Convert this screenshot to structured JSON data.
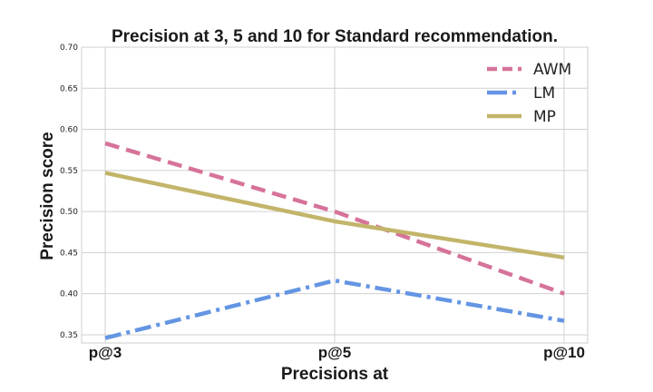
{
  "chart_data": {
    "type": "line",
    "title": "Precision at 3, 5 and 10 for Standard recommendation.",
    "xlabel": "Precisions at",
    "ylabel": "Precision score",
    "categories": [
      "p@3",
      "p@5",
      "p@10"
    ],
    "ylim": [
      0.34,
      0.7
    ],
    "yticks": [
      "0.35",
      "0.40",
      "0.45",
      "0.50",
      "0.55",
      "0.60",
      "0.65",
      "0.70"
    ],
    "grid": true,
    "legend_position": "top-right",
    "series": [
      {
        "name": "AWM",
        "values": [
          0.583,
          0.5,
          0.4
        ],
        "color": "#d6739a",
        "style": "dashed"
      },
      {
        "name": "LM",
        "values": [
          0.346,
          0.416,
          0.367
        ],
        "color": "#6495e3",
        "style": "dashdot"
      },
      {
        "name": "MP",
        "values": [
          0.547,
          0.488,
          0.444
        ],
        "color": "#c2b56a",
        "style": "solid"
      }
    ]
  }
}
